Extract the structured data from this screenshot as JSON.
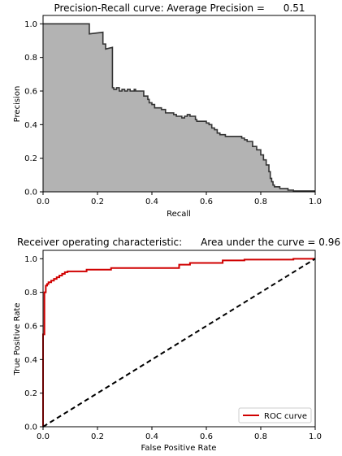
{
  "chart_data": [
    {
      "type": "area",
      "title": "Precision-Recall curve: Average Precision =      0.51",
      "xlabel": "Recall",
      "ylabel": "Precision",
      "xlim": [
        0,
        1
      ],
      "ylim": [
        0,
        1.05
      ],
      "xticks": [
        "0.0",
        "0.2",
        "0.4",
        "0.6",
        "0.8",
        "1.0"
      ],
      "yticks": [
        "0.0",
        "0.2",
        "0.4",
        "0.6",
        "0.8",
        "1.0"
      ],
      "grid": false,
      "colors": {
        "fill": "#b3b3b3",
        "line": "#333333"
      },
      "series": [
        {
          "x": [
            0.0,
            0.17,
            0.17,
            0.22,
            0.22,
            0.23,
            0.23,
            0.255,
            0.255,
            0.26,
            0.26,
            0.27,
            0.27,
            0.28,
            0.28,
            0.29,
            0.29,
            0.3,
            0.3,
            0.31,
            0.31,
            0.32,
            0.32,
            0.335,
            0.335,
            0.34,
            0.34,
            0.355,
            0.355,
            0.37,
            0.37,
            0.385,
            0.385,
            0.39,
            0.39,
            0.4,
            0.4,
            0.41,
            0.41,
            0.425,
            0.425,
            0.435,
            0.435,
            0.45,
            0.45,
            0.48,
            0.48,
            0.49,
            0.49,
            0.5,
            0.5,
            0.51,
            0.51,
            0.52,
            0.52,
            0.53,
            0.53,
            0.54,
            0.54,
            0.56,
            0.56,
            0.565,
            0.565,
            0.57,
            0.57,
            0.6,
            0.6,
            0.61,
            0.61,
            0.62,
            0.62,
            0.63,
            0.63,
            0.64,
            0.64,
            0.65,
            0.65,
            0.66,
            0.66,
            0.67,
            0.67,
            0.7,
            0.7,
            0.73,
            0.73,
            0.74,
            0.74,
            0.75,
            0.75,
            0.77,
            0.77,
            0.785,
            0.785,
            0.8,
            0.8,
            0.81,
            0.81,
            0.82,
            0.82,
            0.83,
            0.83,
            0.835,
            0.835,
            0.84,
            0.84,
            0.845,
            0.845,
            0.85,
            0.85,
            0.87,
            0.87,
            0.9,
            0.9,
            0.92,
            0.92,
            1.0
          ],
          "y": [
            1.0,
            1.0,
            0.94,
            0.95,
            0.88,
            0.88,
            0.85,
            0.86,
            0.62,
            0.62,
            0.61,
            0.61,
            0.62,
            0.62,
            0.6,
            0.6,
            0.61,
            0.61,
            0.6,
            0.6,
            0.61,
            0.61,
            0.6,
            0.6,
            0.61,
            0.61,
            0.6,
            0.6,
            0.6,
            0.6,
            0.57,
            0.57,
            0.55,
            0.55,
            0.53,
            0.53,
            0.52,
            0.52,
            0.5,
            0.5,
            0.5,
            0.5,
            0.49,
            0.49,
            0.47,
            0.47,
            0.46,
            0.46,
            0.45,
            0.45,
            0.45,
            0.45,
            0.44,
            0.44,
            0.45,
            0.45,
            0.46,
            0.46,
            0.45,
            0.45,
            0.43,
            0.43,
            0.42,
            0.42,
            0.42,
            0.42,
            0.41,
            0.41,
            0.4,
            0.4,
            0.38,
            0.38,
            0.37,
            0.37,
            0.35,
            0.35,
            0.34,
            0.34,
            0.34,
            0.34,
            0.33,
            0.33,
            0.33,
            0.33,
            0.32,
            0.32,
            0.31,
            0.31,
            0.3,
            0.3,
            0.27,
            0.27,
            0.25,
            0.25,
            0.22,
            0.22,
            0.19,
            0.19,
            0.16,
            0.16,
            0.12,
            0.12,
            0.08,
            0.08,
            0.06,
            0.06,
            0.04,
            0.04,
            0.03,
            0.03,
            0.02,
            0.02,
            0.01,
            0.01,
            0.005,
            0.005
          ]
        }
      ]
    },
    {
      "type": "line",
      "title": "Receiver operating characteristic:      Area under the curve = 0.96",
      "xlabel": "False Positive Rate",
      "ylabel": "True Positive Rate",
      "xlim": [
        0,
        1
      ],
      "ylim": [
        0,
        1.05
      ],
      "xticks": [
        "0.0",
        "0.2",
        "0.4",
        "0.6",
        "0.8",
        "1.0"
      ],
      "yticks": [
        "0.0",
        "0.2",
        "0.4",
        "0.6",
        "0.8",
        "1.0"
      ],
      "grid": false,
      "legend_position": "lower-right",
      "series": [
        {
          "name": "ROC curve",
          "color": "#d00000",
          "x": [
            0.0,
            0.0,
            0.005,
            0.005,
            0.01,
            0.01,
            0.015,
            0.015,
            0.02,
            0.02,
            0.03,
            0.03,
            0.04,
            0.04,
            0.05,
            0.05,
            0.06,
            0.06,
            0.07,
            0.07,
            0.08,
            0.08,
            0.09,
            0.09,
            0.16,
            0.16,
            0.25,
            0.25,
            0.5,
            0.5,
            0.54,
            0.54,
            0.66,
            0.66,
            0.74,
            0.74,
            0.92,
            0.92,
            1.0
          ],
          "y": [
            0.0,
            0.55,
            0.55,
            0.8,
            0.8,
            0.84,
            0.84,
            0.85,
            0.85,
            0.86,
            0.86,
            0.87,
            0.87,
            0.88,
            0.88,
            0.89,
            0.89,
            0.9,
            0.9,
            0.91,
            0.91,
            0.92,
            0.92,
            0.925,
            0.925,
            0.935,
            0.935,
            0.945,
            0.945,
            0.965,
            0.965,
            0.975,
            0.975,
            0.99,
            0.99,
            0.995,
            0.995,
            1.0,
            1.0
          ]
        },
        {
          "name": "",
          "color": "#000000",
          "dashed": true,
          "x": [
            0.0,
            1.0
          ],
          "y": [
            0.0,
            1.0
          ]
        }
      ]
    }
  ]
}
